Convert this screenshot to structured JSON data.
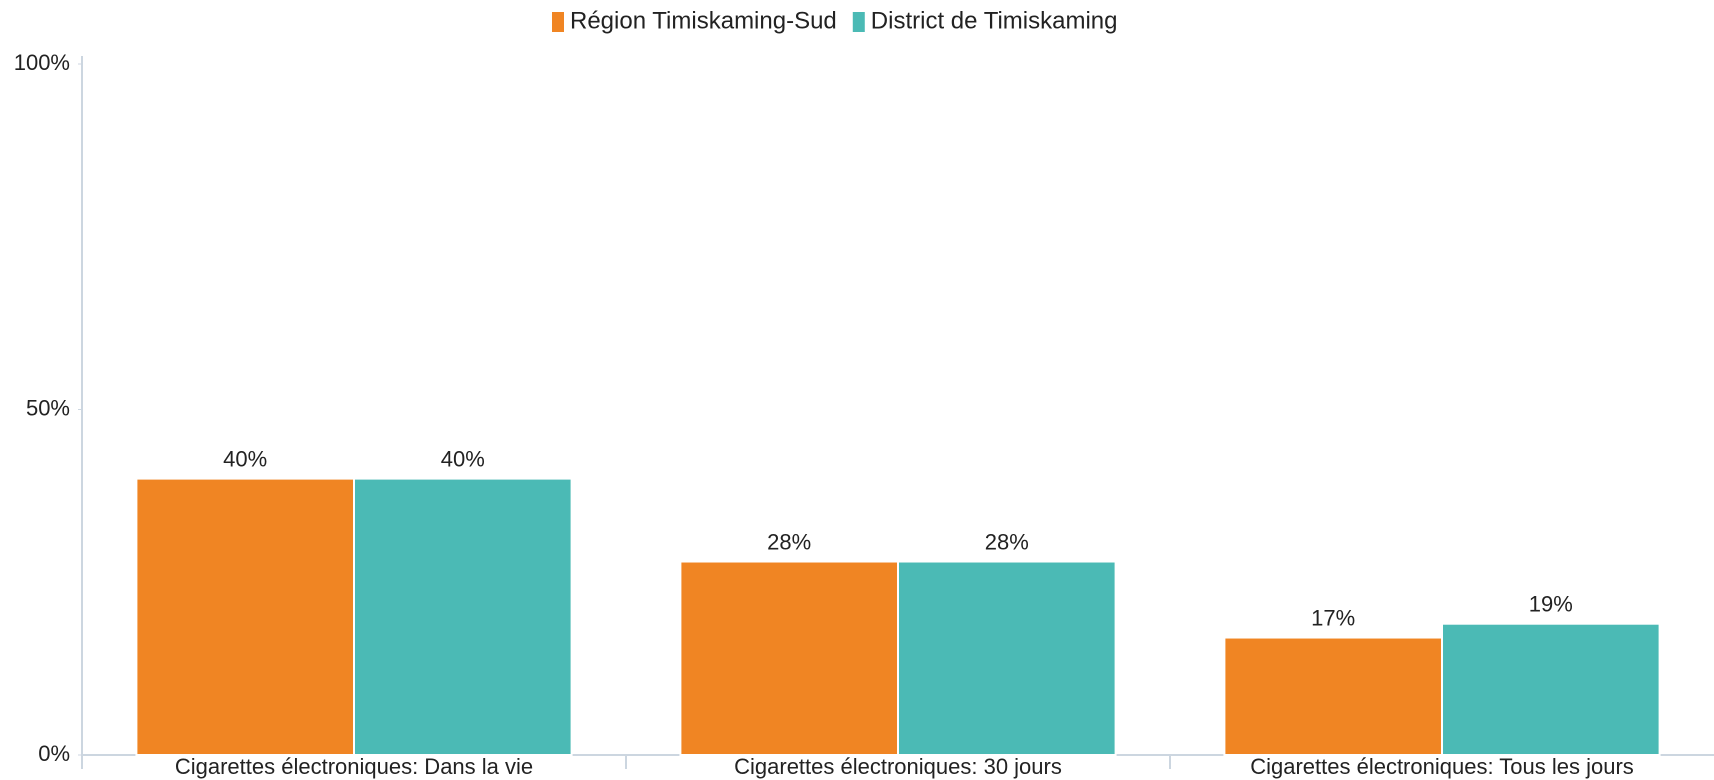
{
  "chart_data": {
    "type": "bar",
    "categories": [
      "Cigarettes électroniques: Dans la vie",
      "Cigarettes électroniques: 30 jours",
      "Cigarettes électroniques: Tous les jours"
    ],
    "series": [
      {
        "name": "Région Timiskaming-Sud",
        "color": "#f08523",
        "values": [
          40,
          28,
          17
        ],
        "value_labels": [
          "40%",
          "28%",
          "17%"
        ]
      },
      {
        "name": "District de Timiskaming",
        "color": "#4bbab5",
        "values": [
          40,
          28,
          19
        ],
        "value_labels": [
          "40%",
          "28%",
          "19%"
        ]
      }
    ],
    "ylim": [
      0,
      100
    ],
    "yticks": [
      {
        "value": 0,
        "label": "0%"
      },
      {
        "value": 50,
        "label": "50%"
      },
      {
        "value": 100,
        "label": "100%"
      }
    ],
    "grid": false,
    "legend": "top"
  }
}
